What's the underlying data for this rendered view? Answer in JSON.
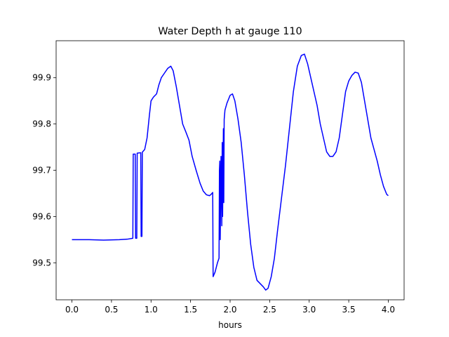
{
  "chart_data": {
    "type": "line",
    "title": "Water Depth h at gauge 110",
    "xlabel": "hours",
    "ylabel": "",
    "xlim": [
      -0.2,
      4.2
    ],
    "ylim": [
      99.42,
      99.98
    ],
    "xticks": [
      0.0,
      0.5,
      1.0,
      1.5,
      2.0,
      2.5,
      3.0,
      3.5,
      4.0
    ],
    "xtick_labels": [
      "0.0",
      "0.5",
      "1.0",
      "1.5",
      "2.0",
      "2.5",
      "3.0",
      "3.5",
      "4.0"
    ],
    "yticks": [
      99.5,
      99.6,
      99.7,
      99.8,
      99.9
    ],
    "ytick_labels": [
      "99.5",
      "99.6",
      "99.7",
      "99.8",
      "99.9"
    ],
    "grid": false,
    "series": [
      {
        "color": "#0000ff",
        "points": [
          [
            0.0,
            99.55
          ],
          [
            0.2,
            99.55
          ],
          [
            0.4,
            99.549
          ],
          [
            0.6,
            99.55
          ],
          [
            0.7,
            99.551
          ],
          [
            0.77,
            99.553
          ],
          [
            0.775,
            99.735
          ],
          [
            0.8,
            99.735
          ],
          [
            0.805,
            99.553
          ],
          [
            0.82,
            99.553
          ],
          [
            0.825,
            99.737
          ],
          [
            0.87,
            99.738
          ],
          [
            0.875,
            99.557
          ],
          [
            0.885,
            99.557
          ],
          [
            0.89,
            99.739
          ],
          [
            0.92,
            99.745
          ],
          [
            0.95,
            99.77
          ],
          [
            0.98,
            99.82
          ],
          [
            1.0,
            99.85
          ],
          [
            1.03,
            99.858
          ],
          [
            1.07,
            99.865
          ],
          [
            1.1,
            99.885
          ],
          [
            1.13,
            99.9
          ],
          [
            1.17,
            99.91
          ],
          [
            1.21,
            99.92
          ],
          [
            1.25,
            99.925
          ],
          [
            1.28,
            99.915
          ],
          [
            1.32,
            99.88
          ],
          [
            1.36,
            99.84
          ],
          [
            1.4,
            99.8
          ],
          [
            1.44,
            99.783
          ],
          [
            1.48,
            99.765
          ],
          [
            1.52,
            99.73
          ],
          [
            1.57,
            99.7
          ],
          [
            1.62,
            99.672
          ],
          [
            1.66,
            99.655
          ],
          [
            1.7,
            99.647
          ],
          [
            1.74,
            99.645
          ],
          [
            1.76,
            99.648
          ],
          [
            1.78,
            99.652
          ],
          [
            1.785,
            99.47
          ],
          [
            1.81,
            99.48
          ],
          [
            1.84,
            99.5
          ],
          [
            1.86,
            99.51
          ],
          [
            1.865,
            99.7
          ],
          [
            1.87,
            99.72
          ],
          [
            1.875,
            99.55
          ],
          [
            1.885,
            99.73
          ],
          [
            1.895,
            99.58
          ],
          [
            1.9,
            99.76
          ],
          [
            1.905,
            99.6
          ],
          [
            1.915,
            99.79
          ],
          [
            1.92,
            99.63
          ],
          [
            1.925,
            99.81
          ],
          [
            1.935,
            99.83
          ],
          [
            1.96,
            99.845
          ],
          [
            2.0,
            99.862
          ],
          [
            2.03,
            99.865
          ],
          [
            2.06,
            99.85
          ],
          [
            2.1,
            99.81
          ],
          [
            2.14,
            99.76
          ],
          [
            2.18,
            99.69
          ],
          [
            2.22,
            99.61
          ],
          [
            2.26,
            99.54
          ],
          [
            2.3,
            99.49
          ],
          [
            2.34,
            99.462
          ],
          [
            2.38,
            99.455
          ],
          [
            2.42,
            99.448
          ],
          [
            2.45,
            99.441
          ],
          [
            2.48,
            99.445
          ],
          [
            2.52,
            99.47
          ],
          [
            2.56,
            99.51
          ],
          [
            2.6,
            99.57
          ],
          [
            2.65,
            99.64
          ],
          [
            2.7,
            99.71
          ],
          [
            2.75,
            99.79
          ],
          [
            2.8,
            99.87
          ],
          [
            2.85,
            99.925
          ],
          [
            2.9,
            99.948
          ],
          [
            2.94,
            99.951
          ],
          [
            2.98,
            99.93
          ],
          [
            3.02,
            99.9
          ],
          [
            3.06,
            99.87
          ],
          [
            3.1,
            99.84
          ],
          [
            3.14,
            99.8
          ],
          [
            3.18,
            99.77
          ],
          [
            3.22,
            99.74
          ],
          [
            3.26,
            99.73
          ],
          [
            3.3,
            99.73
          ],
          [
            3.34,
            99.74
          ],
          [
            3.38,
            99.77
          ],
          [
            3.42,
            99.82
          ],
          [
            3.46,
            99.87
          ],
          [
            3.5,
            99.893
          ],
          [
            3.54,
            99.905
          ],
          [
            3.58,
            99.912
          ],
          [
            3.62,
            99.91
          ],
          [
            3.66,
            99.89
          ],
          [
            3.7,
            99.85
          ],
          [
            3.74,
            99.81
          ],
          [
            3.78,
            99.77
          ],
          [
            3.82,
            99.745
          ],
          [
            3.86,
            99.72
          ],
          [
            3.9,
            99.69
          ],
          [
            3.94,
            99.665
          ],
          [
            3.98,
            99.648
          ],
          [
            4.0,
            99.645
          ]
        ]
      }
    ]
  }
}
